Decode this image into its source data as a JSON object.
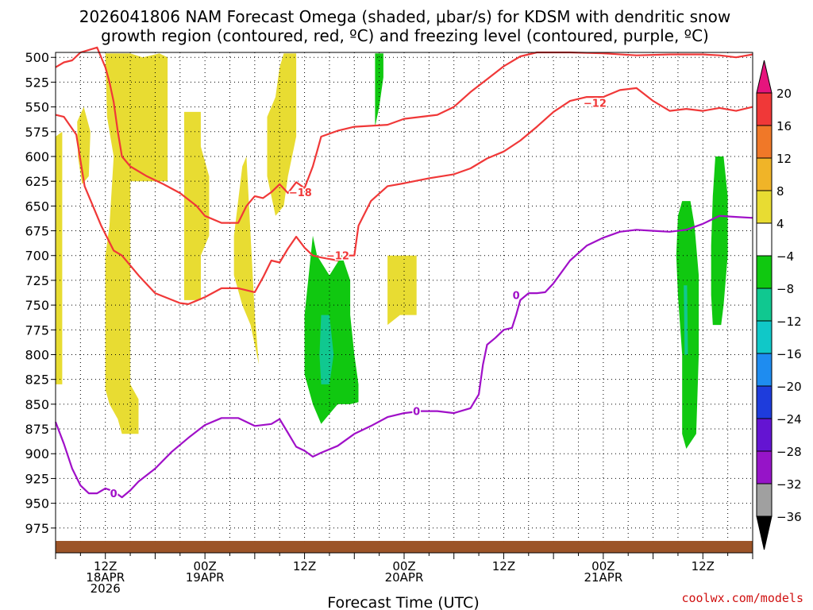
{
  "chart_data": {
    "type": "heatmap",
    "title_line1": "2026041806 NAM Forecast Omega (shaded, μbar/s) for KDSM with dendritic snow",
    "title_line2": "growth region (contoured, red, ºC) and freezing level (contoured, purple, ºC)",
    "xlabel": "Forecast Time (UTC)",
    "credit": "coolwx.com/models",
    "x_range_hours": [
      0,
      84
    ],
    "y_levels": [
      500,
      525,
      550,
      575,
      600,
      625,
      650,
      675,
      700,
      725,
      750,
      775,
      800,
      825,
      850,
      875,
      900,
      925,
      950,
      975
    ],
    "ylim": [
      1000,
      500
    ],
    "x_ticks": [
      {
        "hour": 6,
        "line1": "12Z",
        "line2": "18APR",
        "line3": "2026"
      },
      {
        "hour": 18,
        "line1": "00Z",
        "line2": "19APR",
        "line3": ""
      },
      {
        "hour": 30,
        "line1": "12Z",
        "line2": "",
        "line3": ""
      },
      {
        "hour": 42,
        "line1": "00Z",
        "line2": "20APR",
        "line3": ""
      },
      {
        "hour": 54,
        "line1": "12Z",
        "line2": "",
        "line3": ""
      },
      {
        "hour": 66,
        "line1": "00Z",
        "line2": "21APR",
        "line3": ""
      },
      {
        "hour": 78,
        "line1": "12Z",
        "line2": "",
        "line3": ""
      }
    ],
    "colorbar": {
      "labels": [
        "20",
        "16",
        "12",
        "8",
        "4",
        "−4",
        "−8",
        "−12",
        "−16",
        "−20",
        "−24",
        "−28",
        "−32",
        "−36"
      ],
      "colors": [
        "#f03838",
        "#f07828",
        "#f0b428",
        "#e8dc32",
        "#ffffff",
        "#10c810",
        "#10c890",
        "#10c8c8",
        "#1e8cf0",
        "#1e3cdc",
        "#6414d2",
        "#9614c8",
        "#a0a0a0"
      ],
      "top_color": "#e6147d",
      "bottom_color": "#000000"
    },
    "dgz_minus12_hpa": [
      [
        0,
        558
      ],
      [
        1,
        560
      ],
      [
        2.5,
        578
      ],
      [
        3.5,
        630
      ],
      [
        5.5,
        670
      ],
      [
        7,
        695
      ],
      [
        8,
        700
      ],
      [
        10,
        720
      ],
      [
        12,
        738
      ],
      [
        15,
        748
      ],
      [
        16,
        749
      ],
      [
        18,
        742
      ],
      [
        20,
        733
      ],
      [
        22,
        733
      ],
      [
        24,
        737
      ],
      [
        25,
        722
      ],
      [
        26,
        705
      ],
      [
        27,
        707
      ],
      [
        28,
        693
      ],
      [
        29,
        681
      ],
      [
        30,
        692
      ],
      [
        31,
        700
      ],
      [
        32,
        702
      ],
      [
        34,
        705
      ],
      [
        35,
        700
      ],
      [
        36,
        700
      ],
      [
        36.5,
        670
      ],
      [
        38,
        645
      ],
      [
        40,
        630
      ],
      [
        42,
        627
      ],
      [
        45,
        622
      ],
      [
        48,
        618
      ],
      [
        50,
        612
      ],
      [
        52,
        602
      ],
      [
        54,
        595
      ],
      [
        56,
        584
      ],
      [
        58,
        570
      ],
      [
        60,
        555
      ],
      [
        62,
        544
      ],
      [
        64,
        540
      ],
      [
        66,
        540
      ],
      [
        68,
        533
      ],
      [
        70,
        531
      ],
      [
        72,
        544
      ],
      [
        74,
        554
      ],
      [
        76,
        552
      ],
      [
        78,
        554
      ],
      [
        80,
        551
      ],
      [
        82,
        554
      ],
      [
        84,
        550
      ]
    ],
    "dgz_minus18_hpa": [
      [
        0,
        510
      ],
      [
        1,
        505
      ],
      [
        2,
        503
      ],
      [
        3,
        495
      ],
      [
        5,
        490
      ],
      [
        6,
        510
      ],
      [
        6.5,
        525
      ],
      [
        7,
        545
      ],
      [
        7.5,
        575
      ],
      [
        8,
        600
      ],
      [
        9,
        610
      ],
      [
        11,
        620
      ],
      [
        13,
        628
      ],
      [
        15,
        637
      ],
      [
        17,
        650
      ],
      [
        18,
        660
      ],
      [
        20,
        667
      ],
      [
        22,
        667
      ],
      [
        23,
        650
      ],
      [
        24,
        640
      ],
      [
        25,
        642
      ],
      [
        26,
        636
      ],
      [
        27,
        628
      ],
      [
        28,
        637
      ],
      [
        29,
        626
      ],
      [
        30,
        632
      ],
      [
        31,
        610
      ],
      [
        31.5,
        595
      ],
      [
        32,
        580
      ],
      [
        34,
        574
      ],
      [
        36,
        570
      ],
      [
        40,
        568
      ],
      [
        42,
        562
      ],
      [
        44,
        560
      ],
      [
        46,
        558
      ],
      [
        48,
        550
      ],
      [
        50,
        535
      ],
      [
        52,
        522
      ],
      [
        54,
        509
      ],
      [
        56,
        499
      ],
      [
        58,
        495
      ],
      [
        60,
        495
      ],
      [
        62,
        495
      ],
      [
        66,
        496
      ],
      [
        70,
        498
      ],
      [
        74,
        497
      ],
      [
        78,
        497
      ],
      [
        80,
        498
      ],
      [
        82,
        500
      ],
      [
        84,
        497
      ]
    ],
    "freezing_level_hpa": [
      [
        0,
        868
      ],
      [
        1,
        890
      ],
      [
        2,
        915
      ],
      [
        3,
        932
      ],
      [
        4,
        940
      ],
      [
        5,
        940
      ],
      [
        6,
        935
      ],
      [
        7,
        938
      ],
      [
        8,
        944
      ],
      [
        9,
        937
      ],
      [
        10,
        928
      ],
      [
        12,
        915
      ],
      [
        14,
        898
      ],
      [
        16,
        884
      ],
      [
        18,
        871
      ],
      [
        20,
        864
      ],
      [
        22,
        864
      ],
      [
        24,
        872
      ],
      [
        26,
        870
      ],
      [
        27,
        865
      ],
      [
        28,
        879
      ],
      [
        29,
        893
      ],
      [
        30,
        897
      ],
      [
        31,
        903
      ],
      [
        32,
        899
      ],
      [
        34,
        892
      ],
      [
        36,
        880
      ],
      [
        38,
        872
      ],
      [
        40,
        863
      ],
      [
        42,
        859
      ],
      [
        44,
        857
      ],
      [
        46,
        857
      ],
      [
        48,
        859
      ],
      [
        50,
        854
      ],
      [
        51,
        840
      ],
      [
        51.5,
        810
      ],
      [
        52,
        790
      ],
      [
        53,
        783
      ],
      [
        54,
        775
      ],
      [
        55,
        773
      ],
      [
        55.5,
        760
      ],
      [
        56,
        745
      ],
      [
        57,
        738
      ],
      [
        58,
        738
      ],
      [
        59,
        737
      ],
      [
        60,
        728
      ],
      [
        62,
        705
      ],
      [
        64,
        690
      ],
      [
        66,
        682
      ],
      [
        68,
        676
      ],
      [
        70,
        674
      ],
      [
        72,
        675
      ],
      [
        74,
        676
      ],
      [
        76,
        674
      ],
      [
        78,
        668
      ],
      [
        80,
        660
      ],
      [
        82,
        661
      ],
      [
        84,
        662
      ]
    ],
    "contour_labels": [
      {
        "text": "−12",
        "hour": 65,
        "hpa": 546,
        "color": "#f03838"
      },
      {
        "text": "−18",
        "hour": 29.5,
        "hpa": 636,
        "color": "#f03838"
      },
      {
        "text": "−12",
        "hour": 34,
        "hpa": 700,
        "color": "#f03838"
      },
      {
        "text": "0",
        "hour": 55.5,
        "hpa": 740,
        "color": "#a010c8"
      },
      {
        "text": "0",
        "hour": 43.5,
        "hpa": 857,
        "color": "#a010c8"
      },
      {
        "text": "0",
        "hour": 7,
        "hpa": 940,
        "color": "#a010c8"
      }
    ],
    "omega_regions": [
      {
        "level": "4 to 8",
        "color": "#e8dc32",
        "points": [
          [
            0,
            580
          ],
          [
            0.8,
            575
          ],
          [
            0.8,
            830
          ],
          [
            0,
            830
          ]
        ]
      },
      {
        "level": "4 to 8",
        "color": "#e8dc32",
        "points": [
          [
            2.6,
            565
          ],
          [
            3.4,
            550
          ],
          [
            4.2,
            575
          ],
          [
            4,
            620
          ],
          [
            3.2,
            628
          ],
          [
            2.7,
            600
          ]
        ]
      },
      {
        "level": "4 to 8",
        "color": "#e8dc32",
        "points": [
          [
            6,
            496
          ],
          [
            9,
            496
          ],
          [
            10.5,
            500
          ],
          [
            12.5,
            496
          ],
          [
            13.5,
            500
          ],
          [
            13.5,
            625
          ],
          [
            9,
            625
          ],
          [
            9,
            830
          ],
          [
            10,
            845
          ],
          [
            10,
            880
          ],
          [
            8,
            880
          ],
          [
            7.5,
            865
          ],
          [
            6.5,
            850
          ],
          [
            6,
            835
          ],
          [
            6,
            760
          ],
          [
            6,
            700
          ],
          [
            6.5,
            670
          ],
          [
            7,
            600
          ],
          [
            6.2,
            560
          ]
        ]
      },
      {
        "level": "4 to 8",
        "color": "#e8dc32",
        "points": [
          [
            15.5,
            555
          ],
          [
            17.5,
            555
          ],
          [
            17.5,
            745
          ],
          [
            15.5,
            745
          ]
        ]
      },
      {
        "level": "4 to 8",
        "color": "#e8dc32",
        "points": [
          [
            15.5,
            590
          ],
          [
            17.5,
            590
          ],
          [
            18.5,
            620
          ],
          [
            18.5,
            680
          ],
          [
            17.5,
            700
          ],
          [
            17.5,
            740
          ],
          [
            15.5,
            740
          ]
        ]
      },
      {
        "level": "4 to 8",
        "color": "#e8dc32",
        "points": [
          [
            21.5,
            680
          ],
          [
            22.5,
            610
          ],
          [
            23,
            600
          ],
          [
            24,
            760
          ],
          [
            24.5,
            810
          ],
          [
            23.5,
            770
          ],
          [
            22.5,
            750
          ],
          [
            21.5,
            720
          ]
        ]
      },
      {
        "level": "4 to 8",
        "color": "#e8dc32",
        "points": [
          [
            25.5,
            560
          ],
          [
            26.5,
            540
          ],
          [
            27,
            510
          ],
          [
            27.5,
            496
          ],
          [
            29,
            496
          ],
          [
            29,
            580
          ],
          [
            28,
            620
          ],
          [
            27.5,
            650
          ],
          [
            26.5,
            660
          ],
          [
            25.5,
            620
          ]
        ]
      },
      {
        "level": "4 to 8",
        "color": "#e8dc32",
        "points": [
          [
            40,
            700
          ],
          [
            43.5,
            700
          ],
          [
            43.5,
            760
          ],
          [
            41.5,
            760
          ],
          [
            40,
            770
          ]
        ]
      },
      {
        "level": "-4 to -8",
        "color": "#10c810",
        "points": [
          [
            38.5,
            496
          ],
          [
            39.5,
            496
          ],
          [
            39.5,
            520
          ],
          [
            39,
            550
          ],
          [
            38.5,
            570
          ]
        ]
      },
      {
        "level": "-4 to -8",
        "color": "#10c810",
        "points": [
          [
            31,
            680
          ],
          [
            31.5,
            700
          ],
          [
            33,
            720
          ],
          [
            34.5,
            700
          ],
          [
            35.5,
            725
          ],
          [
            35.5,
            760
          ],
          [
            36,
            800
          ],
          [
            36.5,
            830
          ],
          [
            36.5,
            848
          ],
          [
            35.5,
            850
          ],
          [
            34,
            850
          ],
          [
            33,
            860
          ],
          [
            32,
            870
          ],
          [
            31,
            850
          ],
          [
            30,
            820
          ],
          [
            30,
            760
          ],
          [
            30.5,
            720
          ]
        ]
      },
      {
        "level": "-8 to -12",
        "color": "#10c890",
        "points": [
          [
            32,
            760
          ],
          [
            33,
            760
          ],
          [
            33.5,
            800
          ],
          [
            33,
            830
          ],
          [
            32,
            830
          ],
          [
            31.8,
            800
          ]
        ]
      },
      {
        "level": "-4 to -8",
        "color": "#10c810",
        "points": [
          [
            75.5,
            645
          ],
          [
            76.5,
            645
          ],
          [
            77,
            670
          ],
          [
            77.5,
            720
          ],
          [
            77.5,
            800
          ],
          [
            77.2,
            880
          ],
          [
            76,
            895
          ],
          [
            75.5,
            880
          ],
          [
            75.5,
            800
          ],
          [
            75,
            740
          ],
          [
            74.8,
            700
          ],
          [
            75,
            660
          ]
        ]
      },
      {
        "level": "-4 to -8",
        "color": "#10c810",
        "points": [
          [
            79.5,
            600
          ],
          [
            80.5,
            600
          ],
          [
            81,
            640
          ],
          [
            81,
            700
          ],
          [
            80.5,
            750
          ],
          [
            80.2,
            770
          ],
          [
            79.2,
            770
          ],
          [
            79,
            740
          ],
          [
            79,
            690
          ],
          [
            79.2,
            640
          ]
        ]
      },
      {
        "level": "-8 to -12",
        "color": "#10c890",
        "points": [
          [
            75.7,
            730
          ],
          [
            76.1,
            730
          ],
          [
            76.2,
            800
          ],
          [
            75.8,
            800
          ]
        ]
      }
    ]
  }
}
